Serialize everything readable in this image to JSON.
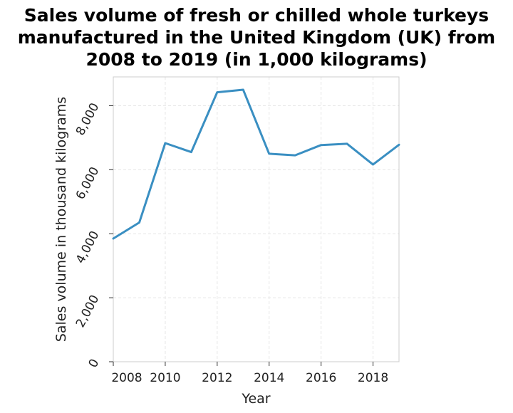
{
  "chart_data": {
    "type": "line",
    "title_lines": [
      "Sales volume of fresh or chilled whole turkeys",
      "manufactured in the United Kingdom (UK) from",
      "2008 to 2019 (in 1,000 kilograms)"
    ],
    "xlabel": "Year",
    "ylabel": "Sales volume in thousand kilograms",
    "x": [
      2008,
      2009,
      2010,
      2011,
      2012,
      2013,
      2014,
      2015,
      2016,
      2017,
      2018,
      2019
    ],
    "values": [
      3850,
      4350,
      6830,
      6550,
      8420,
      8500,
      6500,
      6450,
      6770,
      6810,
      6160,
      6780
    ],
    "xlim": [
      2008,
      2019
    ],
    "ylim": [
      0,
      8900
    ],
    "x_ticks": [
      2008,
      2010,
      2012,
      2014,
      2016,
      2018
    ],
    "x_tick_labels": [
      "2008",
      "2010",
      "2012",
      "2014",
      "2016",
      "2018"
    ],
    "y_ticks": [
      0,
      2000,
      4000,
      6000,
      8000
    ],
    "y_tick_labels": [
      "0",
      "2,000",
      "4,000",
      "6,000",
      "8,000"
    ],
    "grid": true,
    "line_color": "#3a8fc2",
    "grid_color": "#e6e6e6"
  }
}
